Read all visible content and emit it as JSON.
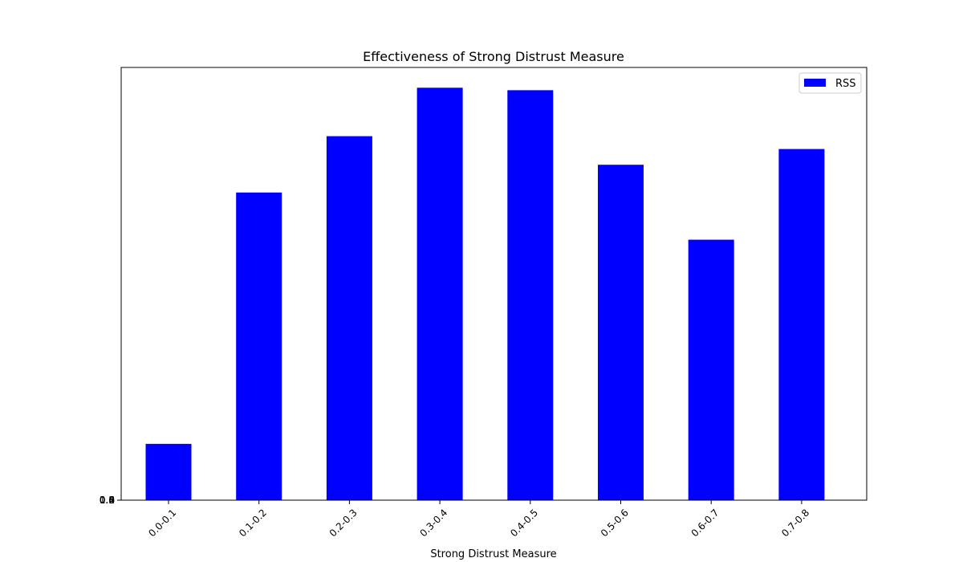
{
  "chart_data": {
    "type": "bar",
    "title": "Effectiveness of Strong Distrust Measure",
    "xlabel": "Strong Distrust Measure",
    "ylabel": "",
    "categories": [
      "0.0-0.1",
      "0.1-0.2",
      "0.2-0.3",
      "0.3-0.4",
      "0.4-0.5",
      "0.5-0.6",
      "0.6-0.7",
      "0.7-0.8"
    ],
    "series": [
      {
        "name": "RSS",
        "color": "#0000ff",
        "values": [
          0.136,
          0.743,
          0.879,
          0.996,
          0.99,
          0.81,
          0.629,
          0.848
        ]
      }
    ],
    "ylim": [
      0,
      1.045
    ],
    "y_ticks_overlapping": [
      "0.0",
      "0.2",
      "0.4",
      "0.6",
      "0.8",
      "1.0"
    ],
    "grid": false,
    "legend": "upper right",
    "x_tick_rotation": 45
  }
}
